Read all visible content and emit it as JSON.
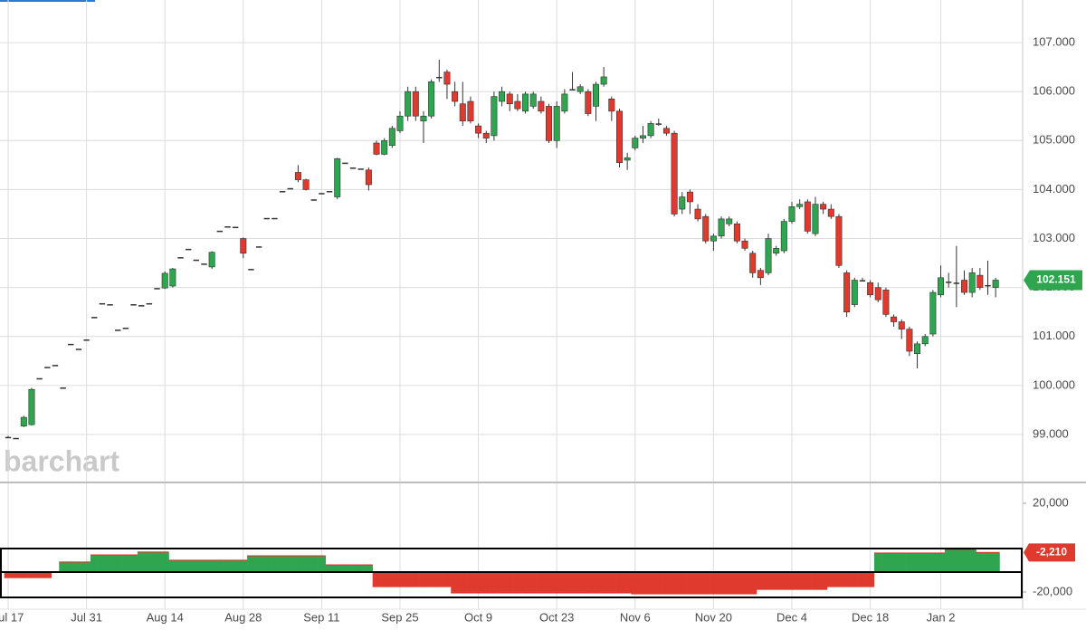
{
  "chart_data": [
    {
      "type": "candlestick",
      "watermark": "barchart",
      "categories": [
        "Jul 17",
        null,
        null,
        null,
        null,
        null,
        null,
        null,
        null,
        null,
        "Jul 31",
        null,
        null,
        null,
        null,
        null,
        null,
        null,
        null,
        null,
        "Aug 14",
        null,
        null,
        null,
        null,
        null,
        null,
        null,
        null,
        null,
        "Aug 28",
        null,
        null,
        null,
        null,
        null,
        null,
        null,
        null,
        null,
        "Sep 11",
        null,
        null,
        null,
        null,
        null,
        null,
        null,
        null,
        null,
        "Sep 25",
        null,
        null,
        null,
        null,
        null,
        null,
        null,
        null,
        null,
        "Oct 9",
        null,
        null,
        null,
        null,
        null,
        null,
        null,
        null,
        null,
        "Oct 23",
        null,
        null,
        null,
        null,
        null,
        null,
        null,
        null,
        null,
        "Nov 6",
        null,
        null,
        null,
        null,
        null,
        null,
        null,
        null,
        null,
        "Nov 20",
        null,
        null,
        null,
        null,
        null,
        null,
        null,
        null,
        null,
        "Dec 4",
        null,
        null,
        null,
        null,
        null,
        null,
        null,
        null,
        null,
        "Dec 18",
        null,
        null,
        null,
        null,
        null,
        null,
        null,
        null,
        "Jan 2",
        null,
        null,
        null,
        null,
        null,
        null,
        null
      ],
      "open": [
        98.95,
        98.93,
        99.17,
        99.2,
        100.15,
        100.38,
        100.42,
        99.96,
        100.85,
        100.75,
        100.94,
        101.4,
        101.68,
        101.66,
        101.14,
        101.18,
        101.66,
        101.64,
        101.68,
        101.99,
        101.99,
        102.03,
        102.62,
        102.79,
        102.57,
        102.49,
        102.42,
        103.16,
        103.25,
        103.24,
        103.0,
        102.38,
        102.84,
        103.42,
        103.42,
        103.97,
        104.03,
        104.35,
        104.2,
        103.8,
        103.93,
        103.97,
        103.85,
        104.55,
        104.45,
        104.43,
        104.4,
        104.95,
        104.72,
        104.9,
        105.2,
        105.5,
        106.0,
        105.4,
        105.5,
        106.3,
        106.4,
        106.0,
        105.75,
        105.8,
        105.3,
        105.15,
        105.1,
        105.8,
        105.95,
        105.8,
        105.6,
        105.7,
        105.8,
        105.7,
        105.0,
        105.6,
        106.05,
        106.0,
        106.0,
        105.7,
        106.15,
        105.85,
        105.6,
        104.6,
        104.85,
        105.05,
        105.1,
        105.35,
        105.25,
        105.15,
        103.6,
        103.95,
        103.6,
        103.45,
        102.95,
        103.05,
        103.3,
        103.3,
        102.95,
        102.7,
        102.35,
        102.3,
        102.7,
        102.75,
        103.35,
        103.65,
        103.75,
        103.1,
        103.7,
        103.6,
        103.45,
        102.3,
        101.65,
        102.15,
        102.1,
        102.0,
        101.95,
        101.4,
        101.3,
        101.15,
        100.65,
        100.85,
        101.05,
        101.85,
        102.12,
        102.1,
        102.15,
        101.9,
        102.25,
        102.05,
        102.0
      ],
      "high": [
        98.97,
        98.93,
        99.38,
        99.95,
        100.15,
        100.38,
        100.42,
        99.96,
        100.85,
        100.75,
        100.94,
        101.4,
        101.68,
        101.66,
        101.14,
        101.18,
        101.66,
        101.64,
        101.68,
        101.99,
        102.33,
        102.4,
        102.62,
        102.79,
        102.57,
        102.49,
        102.74,
        103.16,
        103.25,
        103.24,
        103.02,
        102.38,
        102.84,
        103.42,
        103.42,
        103.97,
        104.03,
        104.5,
        104.22,
        103.8,
        103.93,
        103.97,
        104.65,
        104.55,
        104.45,
        104.43,
        104.45,
        105.0,
        105.05,
        105.3,
        105.6,
        106.1,
        106.1,
        105.6,
        106.25,
        106.65,
        106.45,
        106.2,
        106.2,
        105.9,
        105.35,
        105.2,
        106.0,
        106.1,
        106.0,
        105.95,
        106.0,
        106.0,
        105.9,
        105.75,
        105.8,
        106.05,
        106.4,
        106.15,
        106.05,
        106.2,
        106.5,
        105.9,
        105.65,
        104.75,
        105.1,
        105.3,
        105.4,
        105.45,
        105.3,
        105.2,
        103.95,
        104.0,
        103.7,
        103.5,
        103.1,
        103.45,
        103.45,
        103.35,
        103.0,
        102.75,
        102.4,
        103.1,
        102.85,
        103.4,
        103.75,
        103.8,
        103.8,
        103.85,
        103.75,
        103.7,
        103.5,
        102.35,
        102.2,
        102.2,
        102.15,
        102.1,
        102.0,
        101.45,
        101.35,
        101.2,
        100.9,
        101.05,
        101.95,
        102.45,
        102.3,
        102.85,
        102.35,
        102.4,
        102.4,
        102.55,
        102.2
      ],
      "low": [
        98.93,
        98.93,
        99.15,
        99.18,
        100.15,
        100.38,
        100.42,
        99.96,
        100.85,
        100.75,
        100.94,
        101.4,
        101.68,
        101.66,
        101.14,
        101.18,
        101.66,
        101.64,
        101.68,
        101.99,
        101.97,
        102.0,
        102.62,
        102.79,
        102.57,
        102.49,
        102.38,
        103.16,
        103.25,
        103.24,
        102.6,
        102.38,
        102.84,
        103.42,
        103.42,
        103.97,
        104.03,
        104.15,
        103.98,
        103.8,
        103.93,
        103.97,
        103.8,
        104.55,
        104.45,
        104.43,
        103.98,
        104.7,
        104.7,
        104.85,
        105.15,
        105.4,
        105.4,
        104.95,
        105.45,
        106.2,
        105.85,
        105.7,
        105.3,
        105.35,
        105.05,
        104.95,
        105.0,
        105.7,
        105.6,
        105.6,
        105.55,
        105.65,
        105.55,
        104.95,
        104.85,
        105.55,
        106.05,
        105.95,
        105.5,
        105.4,
        106.1,
        105.4,
        104.45,
        104.4,
        104.8,
        104.95,
        105.05,
        105.3,
        105.1,
        103.45,
        103.5,
        103.5,
        103.35,
        102.9,
        102.75,
        103.0,
        103.25,
        102.9,
        102.75,
        102.2,
        102.05,
        102.25,
        102.65,
        102.7,
        103.3,
        103.6,
        103.1,
        103.05,
        103.5,
        103.4,
        102.4,
        101.4,
        101.6,
        102.15,
        101.8,
        101.7,
        101.4,
        101.2,
        100.95,
        100.6,
        100.35,
        100.8,
        101.0,
        101.8,
        102.0,
        101.6,
        101.85,
        101.8,
        101.95,
        101.85,
        101.8
      ],
      "close": [
        98.95,
        98.93,
        99.35,
        99.92,
        100.15,
        100.38,
        100.42,
        99.96,
        100.85,
        100.75,
        100.94,
        101.4,
        101.68,
        101.66,
        101.14,
        101.18,
        101.66,
        101.64,
        101.68,
        101.99,
        102.29,
        102.38,
        102.62,
        102.79,
        102.57,
        102.49,
        102.72,
        103.16,
        103.25,
        103.24,
        102.7,
        102.38,
        102.84,
        103.42,
        103.42,
        103.97,
        104.03,
        104.2,
        104.0,
        103.8,
        103.93,
        103.97,
        104.63,
        104.55,
        104.45,
        104.43,
        104.1,
        104.72,
        105.0,
        105.25,
        105.5,
        106.0,
        105.5,
        105.5,
        106.2,
        106.3,
        106.15,
        105.8,
        105.4,
        105.4,
        105.15,
        105.05,
        105.9,
        106.0,
        105.75,
        105.65,
        105.95,
        105.95,
        105.6,
        105.0,
        105.7,
        105.95,
        106.05,
        106.1,
        105.55,
        106.15,
        106.3,
        105.6,
        104.55,
        104.65,
        105.05,
        105.1,
        105.35,
        105.35,
        105.15,
        103.5,
        103.85,
        103.75,
        103.4,
        102.95,
        103.05,
        103.4,
        103.4,
        102.95,
        102.8,
        102.3,
        102.2,
        103.0,
        102.8,
        103.35,
        103.65,
        103.7,
        103.15,
        103.7,
        103.6,
        103.45,
        102.45,
        101.5,
        102.15,
        102.15,
        101.85,
        101.75,
        101.45,
        101.3,
        101.15,
        100.7,
        100.85,
        101.0,
        101.9,
        102.2,
        102.12,
        102.1,
        101.9,
        102.3,
        102.0,
        102.05,
        102.151
      ],
      "up_color": "#2ea54e",
      "down_color": "#e0392d",
      "ylim": [
        98.02,
        107.87
      ],
      "yticks": [
        {
          "value": 99,
          "label": "99.000"
        },
        {
          "value": 100,
          "label": "100.000"
        },
        {
          "value": 101,
          "label": "101.000"
        },
        {
          "value": 102,
          "label": "102.000"
        },
        {
          "value": 103,
          "label": "103.000"
        },
        {
          "value": 104,
          "label": "104.000"
        },
        {
          "value": 105,
          "label": "105.000"
        },
        {
          "value": 106,
          "label": "106.000"
        },
        {
          "value": 107,
          "label": "107.000"
        }
      ],
      "grid": true
    },
    {
      "type": "step-area",
      "values": [
        -13500,
        -13500,
        -13500,
        -13500,
        -13500,
        -13500,
        -11000,
        -6500,
        -6500,
        -6500,
        -6500,
        -3300,
        -3300,
        -3300,
        -3300,
        -3300,
        -3300,
        -2000,
        -2000,
        -2000,
        -2000,
        -5700,
        -5700,
        -5700,
        -5700,
        -5700,
        -5700,
        -5700,
        -5700,
        -5700,
        -5700,
        -3700,
        -3700,
        -3700,
        -3700,
        -3700,
        -3700,
        -3700,
        -3700,
        -3700,
        -3700,
        -7800,
        -7800,
        -7800,
        -7800,
        -7800,
        -7800,
        -17550,
        -17550,
        -17550,
        -17550,
        -17550,
        -17550,
        -17550,
        -17550,
        -17550,
        -17550,
        -20400,
        -20400,
        -20400,
        -20400,
        -20400,
        -20400,
        -20400,
        -20400,
        -20400,
        -20400,
        -20400,
        -20400,
        -20400,
        -20400,
        -20400,
        -20400,
        -20400,
        -20400,
        -20400,
        -20400,
        -20400,
        -20400,
        -20400,
        -20800,
        -20800,
        -20800,
        -20800,
        -20800,
        -20800,
        -20800,
        -20800,
        -20800,
        -20800,
        -20800,
        -20800,
        -20800,
        -20800,
        -20800,
        -20800,
        -18800,
        -18800,
        -18800,
        -18800,
        -18800,
        -18800,
        -18800,
        -18800,
        -18800,
        -17550,
        -17550,
        -17550,
        -17550,
        -17550,
        -17550,
        -2450,
        -2450,
        -2450,
        -2450,
        -2450,
        -2450,
        -2450,
        -2450,
        -2450,
        -800,
        -800,
        -800,
        -800,
        -2210,
        -2210,
        -2210
      ],
      "last_value_label": "-2,210",
      "up_color": "#2ea54e",
      "down_color": "#e0392d",
      "ylim": [
        -27750,
        27750
      ],
      "yticks": [
        {
          "value": 20000,
          "label": "20,000"
        },
        {
          "value": -20000,
          "label": "-20,000"
        }
      ]
    }
  ]
}
